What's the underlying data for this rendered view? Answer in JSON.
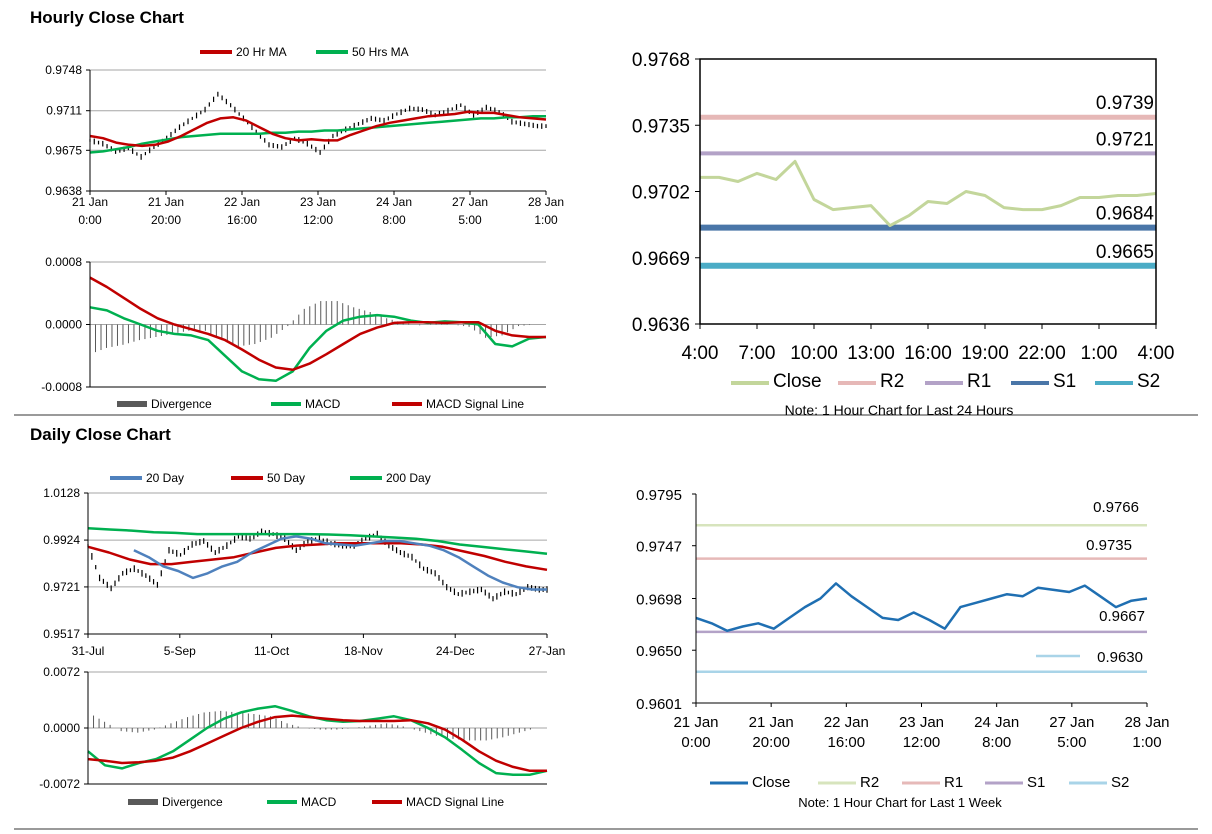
{
  "hourly_section": {
    "title": "Hourly Close Chart"
  },
  "daily_section": {
    "title": "Daily Close Chart"
  },
  "colors": {
    "red": "#c00000",
    "green": "#00b050",
    "blue": "#4f81bd",
    "black": "#000000",
    "gray": "#595959",
    "close_light": "#c3d69b",
    "r2": "#e6b8b7",
    "r1": "#b3a2c7",
    "s1": "#4a76a8",
    "s2": "#4bacc6",
    "close_blue": "#1f6fb2",
    "r2_green": "#d7e4bd",
    "r1_pink": "#e6b9b8",
    "s1_purple": "#b3a2c7",
    "s2_light": "#a9d4e8"
  },
  "chart_data": [
    {
      "id": "hourly_price",
      "type": "line",
      "title": "",
      "x_tick_labels": [
        [
          "21 Jan",
          "0:00"
        ],
        [
          "21 Jan",
          "20:00"
        ],
        [
          "22 Jan",
          "16:00"
        ],
        [
          "23 Jan",
          "12:00"
        ],
        [
          "24 Jan",
          "8:00"
        ],
        [
          "27 Jan",
          "5:00"
        ],
        [
          "28 Jan",
          "1:00"
        ]
      ],
      "y_ticks": [
        "0.9748",
        "0.9711",
        "0.9675",
        "0.9638"
      ],
      "ylim": [
        0.9638,
        0.9748
      ],
      "legend": [
        "20 Hr MA",
        "50 Hrs MA"
      ],
      "close": [
        0.9684,
        0.9681,
        0.9674,
        0.9677,
        0.9669,
        0.9678,
        0.9686,
        0.9696,
        0.9704,
        0.9712,
        0.9726,
        0.9716,
        0.9704,
        0.9692,
        0.968,
        0.9678,
        0.9686,
        0.9681,
        0.9673,
        0.9688,
        0.9694,
        0.9699,
        0.9704,
        0.9702,
        0.9708,
        0.9713,
        0.9712,
        0.9707,
        0.9711,
        0.9716,
        0.9707,
        0.9714,
        0.971,
        0.9701,
        0.9699,
        0.9697
      ],
      "ma20": [
        0.9688,
        0.9686,
        0.9682,
        0.968,
        0.9679,
        0.968,
        0.9683,
        0.9688,
        0.9694,
        0.97,
        0.9704,
        0.9705,
        0.9702,
        0.9696,
        0.969,
        0.9686,
        0.9684,
        0.9685,
        0.9684,
        0.9684,
        0.9689,
        0.9693,
        0.9697,
        0.97,
        0.9702,
        0.9704,
        0.9706,
        0.9707,
        0.9708,
        0.971,
        0.9709,
        0.9709,
        0.9707,
        0.9705,
        0.9704,
        0.9703
      ],
      "ma50": [
        0.9673,
        0.9674,
        0.9676,
        0.9678,
        0.9681,
        0.9683,
        0.9685,
        0.9687,
        0.9688,
        0.9689,
        0.969,
        0.969,
        0.969,
        0.969,
        0.9691,
        0.9691,
        0.9692,
        0.9692,
        0.9693,
        0.9693,
        0.9694,
        0.9695,
        0.9696,
        0.9697,
        0.9698,
        0.9699,
        0.97,
        0.9701,
        0.9702,
        0.9703,
        0.9704,
        0.9704,
        0.9705,
        0.9705,
        0.9706,
        0.9706
      ]
    },
    {
      "id": "hourly_macd",
      "type": "line",
      "y_ticks": [
        "0.0008",
        "0.0000",
        "-0.0008"
      ],
      "ylim": [
        -0.0008,
        0.0008
      ],
      "legend": [
        "Divergence",
        "MACD",
        "MACD Signal Line"
      ],
      "macd": [
        0.00022,
        0.00018,
        8e-05,
        0.0,
        -8e-05,
        -0.00012,
        -0.00014,
        -0.0002,
        -0.0004,
        -0.0006,
        -0.0007,
        -0.00072,
        -0.0006,
        -0.0003,
        -8e-05,
        5e-05,
        0.0001,
        0.00012,
        0.0001,
        5e-05,
        2e-05,
        4e-05,
        3e-05,
        0.0,
        -0.00025,
        -0.00028,
        -0.00018,
        -0.00016
      ],
      "signal": [
        0.0006,
        0.00048,
        0.00034,
        0.0002,
        8e-05,
        0.0,
        -6e-05,
        -0.00012,
        -0.0002,
        -0.00032,
        -0.00045,
        -0.00055,
        -0.00058,
        -0.0005,
        -0.00038,
        -0.00025,
        -0.00012,
        -4e-05,
        2e-05,
        3e-05,
        3e-05,
        2e-05,
        3e-05,
        3e-05,
        -8e-05,
        -0.00014,
        -0.00016,
        -0.00016
      ],
      "divergence": [
        -0.00038,
        -0.0003,
        -0.00026,
        -0.0002,
        -0.00016,
        -0.00012,
        -8e-05,
        -8e-05,
        -0.0002,
        -0.00028,
        -0.00025,
        -0.00017,
        -2e-05,
        0.0002,
        0.0003,
        0.0003,
        0.00022,
        0.00016,
        8e-05,
        2e-05,
        -1e-05,
        2e-05,
        0.0,
        -3e-05,
        -0.00017,
        -0.00014,
        -2e-05,
        0.0
      ]
    },
    {
      "id": "hourly_levels",
      "type": "line",
      "x_tick_labels": [
        "4:00",
        "7:00",
        "10:00",
        "13:00",
        "16:00",
        "19:00",
        "22:00",
        "1:00",
        "4:00"
      ],
      "y_ticks": [
        "0.9768",
        "0.9735",
        "0.9702",
        "0.9669",
        "0.9636"
      ],
      "ylim": [
        0.9636,
        0.9768
      ],
      "close": [
        0.9709,
        0.9709,
        0.9707,
        0.9711,
        0.9708,
        0.9717,
        0.9698,
        0.9693,
        0.9694,
        0.9695,
        0.9685,
        0.969,
        0.9697,
        0.9696,
        0.9702,
        0.97,
        0.9694,
        0.9693,
        0.9693,
        0.9695,
        0.9699,
        0.9699,
        0.97,
        0.97,
        0.9701
      ],
      "levels": [
        {
          "name": "R2",
          "value": 0.9739,
          "label": "0.9739"
        },
        {
          "name": "R1",
          "value": 0.9721,
          "label": "0.9721"
        },
        {
          "name": "S1",
          "value": 0.9684,
          "label": "0.9684"
        },
        {
          "name": "S2",
          "value": 0.9665,
          "label": "0.9665"
        }
      ],
      "legend": [
        "Close",
        "R2",
        "R1",
        "S1",
        "S2"
      ],
      "note": "Note: 1 Hour Chart for Last 24 Hours"
    },
    {
      "id": "daily_price",
      "type": "line",
      "x_tick_labels": [
        "31-Jul",
        "5-Sep",
        "11-Oct",
        "18-Nov",
        "24-Dec",
        "27-Jan"
      ],
      "y_ticks": [
        "1.0128",
        "0.9924",
        "0.9721",
        "0.9517"
      ],
      "ylim": [
        0.9517,
        1.0128
      ],
      "legend": [
        "20 Day",
        "50 Day",
        "200 Day"
      ],
      "close": [
        0.99,
        0.976,
        0.9715,
        0.978,
        0.98,
        0.977,
        0.973,
        0.988,
        0.986,
        0.9905,
        0.992,
        0.987,
        0.99,
        0.994,
        0.993,
        0.996,
        0.995,
        0.993,
        0.988,
        0.992,
        0.993,
        0.991,
        0.99,
        0.99,
        0.993,
        0.995,
        0.99,
        0.987,
        0.985,
        0.98,
        0.978,
        0.972,
        0.969,
        0.97,
        0.971,
        0.967,
        0.97,
        0.969,
        0.972,
        0.971
      ],
      "ma20": [
        0.988,
        0.985,
        0.981,
        0.979,
        0.976,
        0.978,
        0.981,
        0.983,
        0.987,
        0.99,
        0.993,
        0.994,
        0.993,
        0.991,
        0.9905,
        0.99,
        0.991,
        0.992,
        0.992,
        0.991,
        0.99,
        0.988,
        0.985,
        0.981,
        0.977,
        0.974,
        0.972,
        0.971,
        0.971
      ],
      "ma50": [
        0.9895,
        0.987,
        0.984,
        0.982,
        0.982,
        0.983,
        0.984,
        0.985,
        0.987,
        0.989,
        0.99,
        0.9905,
        0.991,
        0.991,
        0.991,
        0.991,
        0.9905,
        0.9895,
        0.9875,
        0.9855,
        0.983,
        0.981,
        0.9795
      ],
      "ma200": [
        0.9975,
        0.997,
        0.9965,
        0.9958,
        0.9955,
        0.995,
        0.995,
        0.995,
        0.995,
        0.995,
        0.995,
        0.9948,
        0.9945,
        0.994,
        0.9935,
        0.993,
        0.992,
        0.9905,
        0.9895,
        0.9885,
        0.9875,
        0.9865
      ]
    },
    {
      "id": "daily_macd",
      "type": "line",
      "y_ticks": [
        "0.0072",
        "0.0000",
        "-0.0072"
      ],
      "ylim": [
        -0.0072,
        0.0072
      ],
      "legend": [
        "Divergence",
        "MACD",
        "MACD Signal Line"
      ],
      "macd": [
        -0.003,
        -0.0048,
        -0.0052,
        -0.0045,
        -0.004,
        -0.003,
        -0.0015,
        0.0,
        0.0012,
        0.002,
        0.0025,
        0.0028,
        0.0022,
        0.0015,
        0.001,
        0.0008,
        0.0009,
        0.0012,
        0.0015,
        0.001,
        0.0,
        -0.0012,
        -0.0028,
        -0.0045,
        -0.0058,
        -0.006,
        -0.006,
        -0.0055
      ],
      "signal": [
        -0.004,
        -0.0042,
        -0.0045,
        -0.0044,
        -0.0042,
        -0.0038,
        -0.003,
        -0.002,
        -0.001,
        0.0,
        0.0008,
        0.0014,
        0.0016,
        0.0014,
        0.0012,
        0.001,
        0.0009,
        0.0009,
        0.0009,
        0.001,
        0.0006,
        -0.0002,
        -0.0015,
        -0.003,
        -0.0042,
        -0.005,
        -0.0055,
        -0.0055
      ],
      "divergence": [
        0.002,
        0.0008,
        -0.0004,
        -0.0006,
        -0.0002,
        0.0006,
        0.0014,
        0.002,
        0.0022,
        0.002,
        0.0018,
        0.0015,
        0.0006,
        0.0,
        -0.0002,
        -0.0002,
        0.0,
        0.0003,
        0.0006,
        0.0002,
        -0.0004,
        -0.001,
        -0.0014,
        -0.0016,
        -0.0016,
        -0.0012,
        -0.0006,
        0.0
      ]
    },
    {
      "id": "weekly_levels",
      "type": "line",
      "x_tick_labels": [
        [
          "21 Jan",
          "0:00"
        ],
        [
          "21 Jan",
          "20:00"
        ],
        [
          "22 Jan",
          "16:00"
        ],
        [
          "23 Jan",
          "12:00"
        ],
        [
          "24 Jan",
          "8:00"
        ],
        [
          "27 Jan",
          "5:00"
        ],
        [
          "28 Jan",
          "1:00"
        ]
      ],
      "y_ticks": [
        "0.9795",
        "0.9747",
        "0.9698",
        "0.9650",
        "0.9601"
      ],
      "ylim": [
        0.9601,
        0.9795
      ],
      "close": [
        0.968,
        0.9675,
        0.9668,
        0.9672,
        0.9675,
        0.967,
        0.968,
        0.969,
        0.9698,
        0.9712,
        0.97,
        0.969,
        0.968,
        0.9678,
        0.9685,
        0.9678,
        0.967,
        0.969,
        0.9694,
        0.9698,
        0.9702,
        0.97,
        0.9708,
        0.9706,
        0.9704,
        0.971,
        0.97,
        0.969,
        0.9696,
        0.9698
      ],
      "levels": [
        {
          "name": "R2",
          "value": 0.9766,
          "label": "0.9766"
        },
        {
          "name": "R1",
          "value": 0.9735,
          "label": "0.9735"
        },
        {
          "name": "S1",
          "value": 0.9667,
          "label": "0.9667"
        },
        {
          "name": "S2",
          "value": 0.963,
          "label": "0.9630"
        }
      ],
      "legend": [
        "Close",
        "R2",
        "R1",
        "S1",
        "S2"
      ],
      "note": "Note: 1 Hour Chart for Last 1 Week"
    }
  ]
}
